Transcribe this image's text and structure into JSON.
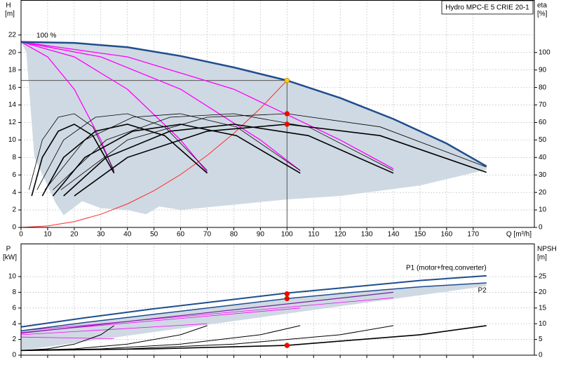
{
  "chart_data": [
    {
      "type": "line",
      "title": "Hydro MPC-E 5 CRIE 20-1",
      "ylabel": "H",
      "yunit": "[m]",
      "y2label": "eta",
      "y2unit": "[%]",
      "xlabel": "Q [m³/h]",
      "xlim": [
        0,
        193
      ],
      "ylim": [
        0,
        26
      ],
      "y2lim": [
        0,
        130
      ],
      "xticks": [
        0,
        10,
        20,
        30,
        40,
        50,
        60,
        70,
        80,
        90,
        100,
        110,
        120,
        130,
        140,
        150,
        160,
        170
      ],
      "yticks": [
        0,
        2,
        4,
        6,
        8,
        10,
        12,
        14,
        16,
        18,
        20,
        22
      ],
      "y2ticks": [
        0,
        10,
        20,
        30,
        40,
        50,
        60,
        70,
        80,
        90,
        100
      ],
      "grid": true,
      "show_xtick_labels": true,
      "series": [
        {
          "fill": true,
          "color": "#cfd9e3",
          "x": [
            0,
            20,
            40,
            60,
            80,
            100,
            120,
            140,
            160,
            175,
            175,
            150,
            120,
            100,
            80,
            60,
            52,
            47,
            40,
            30,
            23,
            20,
            16,
            13,
            5,
            2,
            0
          ],
          "values": [
            21.2,
            21.1,
            20.6,
            19.6,
            18.3,
            16.8,
            14.8,
            12.4,
            9.6,
            7.0,
            6.6,
            4.8,
            3.6,
            3.2,
            2.6,
            2.0,
            2.4,
            1.5,
            2.0,
            2.2,
            3.0,
            2.3,
            1.4,
            2.8,
            8,
            20,
            21.2
          ]
        },
        {
          "color": "#555555",
          "line_width": 1,
          "x": [
            0,
            100
          ],
          "values": [
            16.8,
            16.8
          ]
        },
        {
          "color": "#555555",
          "line_width": 1,
          "x": [
            100,
            100
          ],
          "values": [
            16.8,
            0
          ]
        },
        {
          "color": "#ff2a2a",
          "line_width": 1,
          "x": [
            0,
            10,
            20,
            30,
            40,
            50,
            60,
            70,
            80,
            90,
            100
          ],
          "values": [
            0,
            0.17,
            0.67,
            1.51,
            2.69,
            4.2,
            6.05,
            8.23,
            10.75,
            13.61,
            16.8
          ]
        },
        {
          "color": "#ff00ff",
          "line_width": 1.3,
          "x": [
            0,
            10,
            20,
            30,
            35
          ],
          "values": [
            21.2,
            19.5,
            15.8,
            10,
            6.3
          ]
        },
        {
          "color": "#ff00ff",
          "line_width": 1.3,
          "x": [
            0,
            20,
            40,
            60,
            70
          ],
          "values": [
            21.2,
            19.5,
            15.8,
            10,
            6.3
          ]
        },
        {
          "color": "#ff00ff",
          "line_width": 1.3,
          "x": [
            0,
            30,
            60,
            90,
            105
          ],
          "values": [
            21.2,
            19.5,
            15.8,
            10,
            6.5
          ]
        },
        {
          "color": "#ff00ff",
          "line_width": 1.3,
          "x": [
            0,
            40,
            80,
            120,
            140
          ],
          "values": [
            21.2,
            19.5,
            15.8,
            10,
            6.7
          ]
        },
        {
          "color": "#000000",
          "line_width": 0.8,
          "axis": "y2",
          "x": [
            3,
            8,
            14,
            20,
            27,
            35
          ],
          "values": [
            21.5,
            50,
            63,
            65,
            57.5,
            32.5
          ]
        },
        {
          "color": "#000000",
          "line_width": 0.8,
          "axis": "y2",
          "x": [
            6,
            16,
            28,
            40,
            54,
            70
          ],
          "values": [
            21.5,
            50,
            63,
            65,
            57.5,
            32.5
          ]
        },
        {
          "color": "#000000",
          "line_width": 0.8,
          "axis": "y2",
          "x": [
            9,
            24,
            42,
            60,
            81,
            105
          ],
          "values": [
            21.5,
            50,
            63,
            65,
            57.5,
            32.5
          ]
        },
        {
          "color": "#000000",
          "line_width": 0.8,
          "axis": "y2",
          "x": [
            12,
            32,
            56,
            80,
            108,
            140
          ],
          "values": [
            21.5,
            50,
            63,
            65,
            57.5,
            32.5
          ]
        },
        {
          "color": "#000000",
          "line_width": 0.8,
          "axis": "y2",
          "x": [
            15,
            40,
            70,
            100,
            135,
            175
          ],
          "values": [
            21.5,
            50,
            63,
            65,
            57.5,
            34.5
          ]
        },
        {
          "color": "#000000",
          "line_width": 1.6,
          "axis": "y2",
          "x": [
            4,
            8,
            14,
            20,
            27,
            35
          ],
          "values": [
            18,
            40,
            55,
            59,
            52.5,
            31
          ]
        },
        {
          "color": "#000000",
          "line_width": 1.6,
          "axis": "y2",
          "x": [
            8,
            16,
            28,
            40,
            54,
            70
          ],
          "values": [
            18,
            40,
            55,
            59,
            52.5,
            31
          ]
        },
        {
          "color": "#000000",
          "line_width": 1.6,
          "axis": "y2",
          "x": [
            12,
            24,
            42,
            60,
            81,
            105
          ],
          "values": [
            18,
            40,
            55,
            59,
            52.5,
            31
          ]
        },
        {
          "color": "#000000",
          "line_width": 1.6,
          "axis": "y2",
          "x": [
            16,
            32,
            56,
            80,
            108,
            140
          ],
          "values": [
            18,
            40,
            55,
            59,
            52.5,
            31
          ]
        },
        {
          "color": "#000000",
          "line_width": 1.6,
          "axis": "y2",
          "x": [
            20,
            40,
            70,
            100,
            135,
            175
          ],
          "values": [
            18,
            40,
            55,
            59,
            52.5,
            31.5
          ]
        },
        {
          "name": "100 %",
          "label_position": "start",
          "color": "#1f4e8c",
          "line_width": 2.5,
          "x": [
            0,
            20,
            40,
            60,
            80,
            100,
            120,
            140,
            160,
            175
          ],
          "values": [
            21.2,
            21.1,
            20.6,
            19.6,
            18.3,
            16.8,
            14.8,
            12.4,
            9.6,
            7.0
          ]
        },
        {
          "marker": "circle",
          "color": "#ffcc00",
          "x": [
            100
          ],
          "values": [
            16.8
          ]
        },
        {
          "marker": "circle",
          "color": "#ff0000",
          "axis": "y2",
          "x": [
            100,
            100
          ],
          "values": [
            65,
            59
          ]
        }
      ]
    },
    {
      "type": "line",
      "ylabel": "P",
      "yunit": "[kW]",
      "y2label": "NPSH",
      "y2unit": "[m]",
      "xlim": [
        0,
        193
      ],
      "ylim": [
        0,
        14.2
      ],
      "y2lim": [
        0,
        35.5
      ],
      "xticks": [
        0,
        10,
        20,
        30,
        40,
        50,
        60,
        70,
        80,
        90,
        100,
        110,
        120,
        130,
        140,
        150,
        160,
        170
      ],
      "yticks": [
        0,
        2,
        4,
        6,
        8,
        10
      ],
      "y2ticks": [
        0,
        5,
        10,
        15,
        20,
        25
      ],
      "grid": true,
      "show_xtick_labels": false,
      "series": [
        {
          "fill": true,
          "color": "#cfd9e3",
          "x": [
            0,
            50,
            100,
            150,
            175,
            175,
            0
          ],
          "values": [
            3.1,
            5.2,
            7.2,
            8.7,
            9.2,
            8.8,
            0.6
          ]
        },
        {
          "color": "#ff00ff",
          "line_width": 0.8,
          "x": [
            0,
            35
          ],
          "values": [
            2.3,
            2.1
          ]
        },
        {
          "color": "#ff00ff",
          "line_width": 0.8,
          "x": [
            0,
            70
          ],
          "values": [
            2.6,
            4.0
          ]
        },
        {
          "color": "#ff00ff",
          "line_width": 0.8,
          "x": [
            0,
            105
          ],
          "values": [
            2.9,
            6.0
          ]
        },
        {
          "color": "#ff00ff",
          "line_width": 0.8,
          "x": [
            0,
            140
          ],
          "values": [
            3.1,
            7.3
          ]
        },
        {
          "color": "#7a1fa0",
          "line_width": 1.2,
          "x": [
            0,
            140
          ],
          "values": [
            2.8,
            8.0
          ]
        },
        {
          "color": "#000000",
          "line_width": 1,
          "axis": "y2",
          "x": [
            0,
            10,
            20,
            30,
            35
          ],
          "values": [
            1.5,
            2.0,
            3.5,
            6.5,
            9.4
          ]
        },
        {
          "color": "#000000",
          "line_width": 1,
          "axis": "y2",
          "x": [
            0,
            20,
            40,
            60,
            70
          ],
          "values": [
            1.5,
            2.0,
            3.5,
            6.5,
            9.4
          ]
        },
        {
          "color": "#000000",
          "line_width": 1,
          "axis": "y2",
          "x": [
            0,
            30,
            60,
            90,
            105
          ],
          "values": [
            1.5,
            2.0,
            3.5,
            6.5,
            9.4
          ]
        },
        {
          "color": "#000000",
          "line_width": 1,
          "axis": "y2",
          "x": [
            0,
            40,
            80,
            120,
            140
          ],
          "values": [
            1.5,
            2.0,
            3.5,
            6.5,
            9.4
          ]
        },
        {
          "color": "#000000",
          "line_width": 1.6,
          "axis": "y2",
          "x": [
            0,
            50,
            100,
            150,
            175
          ],
          "values": [
            1.5,
            2.0,
            3.1,
            6.5,
            9.4
          ]
        },
        {
          "name": "P1 (motor+freq.converter)",
          "label_position": "end-above",
          "color": "#1f4e8c",
          "line_width": 2,
          "x": [
            0,
            25,
            50,
            75,
            100,
            125,
            150,
            175
          ],
          "values": [
            3.6,
            4.8,
            5.9,
            6.9,
            7.9,
            8.7,
            9.5,
            10.1
          ]
        },
        {
          "name": "P2",
          "label_position": "end-below",
          "color": "#1f4e8c",
          "line_width": 1.5,
          "x": [
            0,
            25,
            50,
            75,
            100,
            125,
            150,
            175
          ],
          "values": [
            3.1,
            4.2,
            5.2,
            6.2,
            7.2,
            8.0,
            8.7,
            9.2
          ]
        },
        {
          "marker": "circle",
          "color": "#ff0000",
          "x": [
            100,
            100
          ],
          "values": [
            7.8,
            7.2
          ]
        },
        {
          "marker": "circle",
          "color": "#ff0000",
          "axis": "y2",
          "x": [
            100
          ],
          "values": [
            3.1
          ]
        }
      ]
    }
  ]
}
